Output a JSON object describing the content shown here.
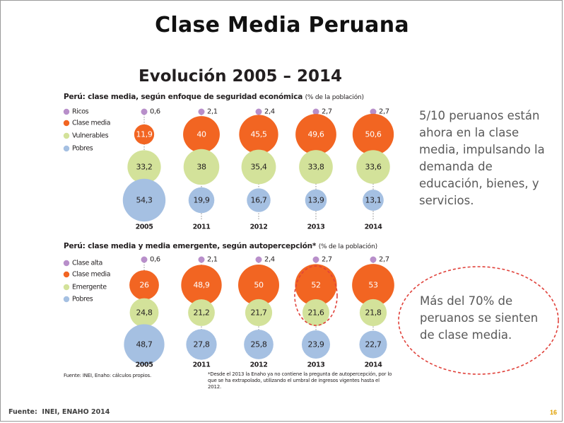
{
  "slide": {
    "title": "Clase Media Peruana",
    "source": "Fuente:",
    "source_value": "INEI, ENAHO 2014",
    "page_number": "16"
  },
  "side_text": "5/10 peruanos están ahora en la clase media, impulsando la demanda de educación, bienes, y servicios.",
  "callout_text": "Más del 70% de peruanos se sienten de clase media.",
  "colors": {
    "top": "#b88fca",
    "clase_media": "#f26522",
    "middle": "#d3e29a",
    "pobres": "#a5c0e2",
    "callout": "#e0413a"
  },
  "chart_data": [
    {
      "type": "bubble",
      "title": "Evolución 2005 – 2014",
      "subtitle": "Perú: clase media, según enfoque de seguridad económica",
      "subtitle_note": "(% de la población)",
      "categories": [
        "2005",
        "2011",
        "2012",
        "2013",
        "2014"
      ],
      "series": [
        {
          "name": "Ricos",
          "values": [
            0.6,
            2.1,
            2.4,
            2.7,
            2.7
          ],
          "labels": [
            "0,6",
            "2,1",
            "2,4",
            "2,7",
            "2,7"
          ]
        },
        {
          "name": "Clase media",
          "values": [
            11.9,
            40,
            45.5,
            49.6,
            50.6
          ],
          "labels": [
            "11,9",
            "40",
            "45,5",
            "49,6",
            "50,6"
          ]
        },
        {
          "name": "Vulnerables",
          "values": [
            33.2,
            38,
            35.4,
            33.8,
            33.6
          ],
          "labels": [
            "33,2",
            "38",
            "35,4",
            "33,8",
            "33,6"
          ]
        },
        {
          "name": "Pobres",
          "values": [
            54.3,
            19.9,
            16.7,
            13.9,
            13.1
          ],
          "labels": [
            "54,3",
            "19,9",
            "16,7",
            "13,9",
            "13,1"
          ]
        }
      ]
    },
    {
      "type": "bubble",
      "subtitle": "Perú: clase media y media emergente, según autopercepción*",
      "subtitle_note": "(% de la población)",
      "categories": [
        "2005",
        "2011",
        "2012",
        "2013",
        "2014"
      ],
      "series": [
        {
          "name": "Clase alta",
          "values": [
            0.6,
            2.1,
            2.4,
            2.7,
            2.7
          ],
          "labels": [
            "0,6",
            "2,1",
            "2,4",
            "2,7",
            "2,7"
          ]
        },
        {
          "name": "Clase media",
          "values": [
            26,
            48.9,
            50,
            52,
            53
          ],
          "labels": [
            "26",
            "48,9",
            "50",
            "52",
            "53"
          ]
        },
        {
          "name": "Emergente",
          "values": [
            24.8,
            21.2,
            21.7,
            21.6,
            21.8
          ],
          "labels": [
            "24,8",
            "21,2",
            "21,7",
            "21,6",
            "21,8"
          ]
        },
        {
          "name": "Pobres",
          "values": [
            48.7,
            27.8,
            25.8,
            23.9,
            22.7
          ],
          "labels": [
            "48,7",
            "27,8",
            "25,8",
            "23,9",
            "22,7"
          ]
        }
      ],
      "highlight_category": "2013",
      "source": "Fuente: INEI, Enaho: cálculos propios.",
      "footnote": "*Desde el 2013 la Enaho ya no contiene la pregunta de autopercepción, por lo que se ha extrapolado, utilizando el umbral de ingresos vigentes hasta el 2012."
    }
  ]
}
